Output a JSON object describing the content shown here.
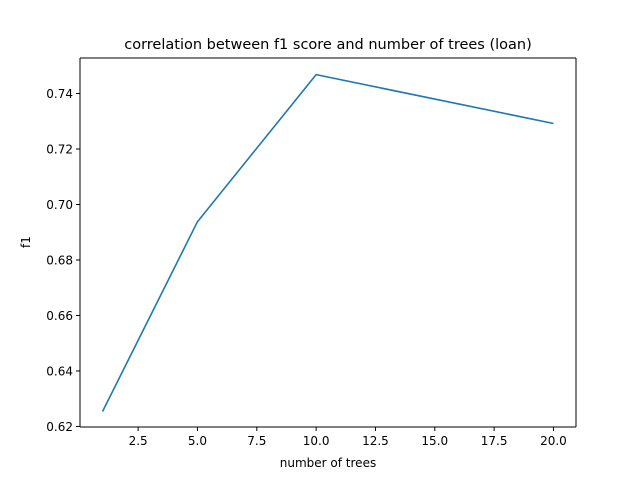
{
  "chart_data": {
    "type": "line",
    "title": "correlation between f1 score and number of trees (loan)",
    "xlabel": "number of trees",
    "ylabel": "f1",
    "xlim": [
      0.05,
      20.95
    ],
    "ylim": [
      0.6198,
      0.7528
    ],
    "xticks": [
      2.5,
      5.0,
      7.5,
      10.0,
      12.5,
      15.0,
      17.5,
      20.0
    ],
    "xtick_labels": [
      "2.5",
      "5.0",
      "7.5",
      "10.0",
      "12.5",
      "15.0",
      "17.5",
      "20.0"
    ],
    "yticks": [
      0.62,
      0.64,
      0.66,
      0.68,
      0.7,
      0.72,
      0.74
    ],
    "ytick_labels": [
      "0.62",
      "0.64",
      "0.66",
      "0.68",
      "0.70",
      "0.72",
      "0.74"
    ],
    "grid": false,
    "series": [
      {
        "name": "f1",
        "color": "#1f77b4",
        "x": [
          1,
          5,
          10,
          20
        ],
        "y": [
          0.6254,
          0.6938,
          0.7468,
          0.7292
        ]
      }
    ]
  }
}
